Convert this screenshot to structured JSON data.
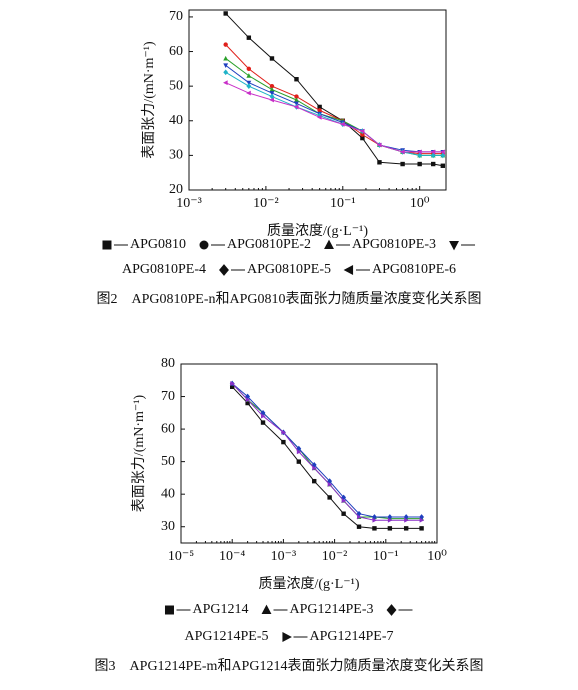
{
  "chart_data": [
    {
      "type": "scatter",
      "xscale": "log",
      "xlabel": "质量浓度/(g·L⁻¹)",
      "ylabel": "表面张力/(mN·m⁻¹)",
      "caption": "图2　APG0810PE-n和APG0810表面张力随质量浓度变化关系图",
      "xlim": [
        0.001,
        2.2
      ],
      "ylim": [
        20,
        72
      ],
      "xticks": [
        {
          "value": 0.001,
          "label": "10⁻³"
        },
        {
          "value": 0.01,
          "label": "10⁻²"
        },
        {
          "value": 0.1,
          "label": "10⁻¹"
        },
        {
          "value": 1,
          "label": "10⁰"
        }
      ],
      "yticks": [
        20,
        30,
        40,
        50,
        60,
        70
      ],
      "x": [
        0.003,
        0.006,
        0.012,
        0.025,
        0.05,
        0.1,
        0.18,
        0.3,
        0.6,
        1,
        1.5,
        2
      ],
      "series": [
        {
          "name": "APG0810",
          "marker": "square",
          "color": "#111111",
          "values": [
            71,
            64,
            58,
            52,
            44,
            40,
            35,
            28,
            27.5,
            27.5,
            27.5,
            27
          ]
        },
        {
          "name": "APG0810PE-2",
          "marker": "circle",
          "color": "#e0201b",
          "values": [
            62,
            55,
            50,
            47,
            43,
            40,
            36,
            33,
            31,
            30.5,
            30.5,
            30.5
          ]
        },
        {
          "name": "APG0810PE-3",
          "marker": "triangle",
          "color": "#2aa02a",
          "values": [
            58,
            53,
            49,
            46,
            42,
            40,
            37,
            33,
            31,
            30,
            30,
            30
          ]
        },
        {
          "name": "APG0810PE-4",
          "marker": "down-triangle",
          "color": "#1f3fbf",
          "values": [
            56,
            51,
            48,
            45,
            42,
            39.5,
            37,
            33,
            31.5,
            31,
            31,
            31
          ]
        },
        {
          "name": "APG0810PE-5",
          "marker": "diamond",
          "color": "#1fb3c8",
          "values": [
            54,
            50,
            47,
            44,
            41.5,
            39,
            37,
            33,
            31,
            30,
            30,
            30
          ]
        },
        {
          "name": "APG0810PE-6",
          "marker": "left-triangle",
          "color": "#c82fc8",
          "values": [
            51,
            48,
            46,
            44,
            41,
            39,
            37,
            33,
            31,
            31,
            31,
            31
          ]
        }
      ]
    },
    {
      "type": "scatter",
      "xscale": "log",
      "xlabel": "质量浓度/(g·L⁻¹)",
      "ylabel": "表面张力/(mN·m⁻¹)",
      "caption": "图3　APG1214PE-m和APG1214表面张力随质量浓度变化关系图",
      "xlim": [
        1e-05,
        1
      ],
      "ylim": [
        25,
        80
      ],
      "xticks": [
        {
          "value": 1e-05,
          "label": "10⁻⁵"
        },
        {
          "value": 0.0001,
          "label": "10⁻⁴"
        },
        {
          "value": 0.001,
          "label": "10⁻³"
        },
        {
          "value": 0.01,
          "label": "10⁻²"
        },
        {
          "value": 0.1,
          "label": "10⁻¹"
        },
        {
          "value": 1,
          "label": "10⁰"
        }
      ],
      "yticks": [
        30,
        40,
        50,
        60,
        70,
        80
      ],
      "x": [
        0.0001,
        0.0002,
        0.0004,
        0.001,
        0.002,
        0.004,
        0.008,
        0.015,
        0.03,
        0.06,
        0.12,
        0.25,
        0.5
      ],
      "series": [
        {
          "name": "APG1214",
          "marker": "square",
          "color": "#111111",
          "values": [
            73,
            68,
            62,
            56,
            50,
            44,
            39,
            34,
            30,
            29.5,
            29.5,
            29.5,
            29.5
          ]
        },
        {
          "name": "APG1214PE-3",
          "marker": "triangle",
          "color": "#2aa02a",
          "values": [
            74,
            69,
            65,
            59,
            54,
            48,
            43,
            38,
            33,
            33,
            32.5,
            32.5,
            32.5
          ]
        },
        {
          "name": "APG1214PE-5",
          "marker": "diamond",
          "color": "#1f3fbf",
          "values": [
            74,
            70,
            65,
            59,
            54,
            49,
            44,
            39,
            34,
            33,
            33,
            33,
            33
          ]
        },
        {
          "name": "APG1214PE-7",
          "marker": "right-triangle",
          "color": "#8a2fc8",
          "values": [
            74,
            69,
            64,
            59,
            53,
            48,
            43,
            38,
            33,
            32,
            32,
            32,
            32
          ]
        }
      ]
    }
  ]
}
